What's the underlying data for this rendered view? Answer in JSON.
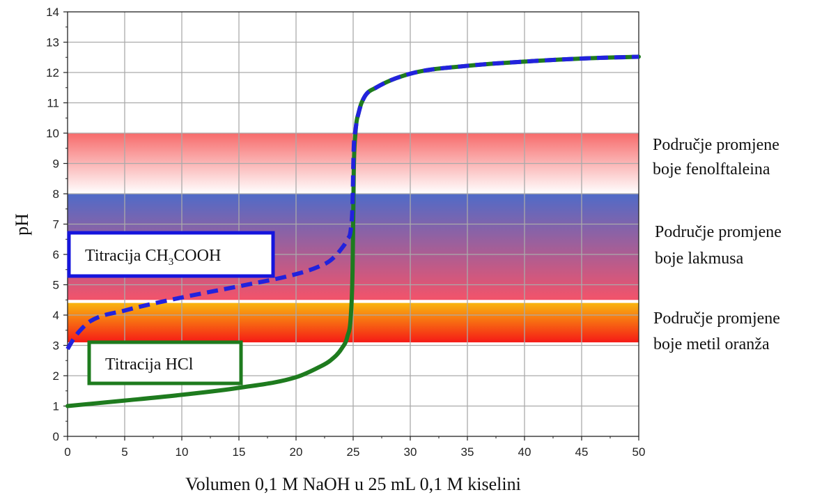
{
  "chart_data": {
    "type": "line",
    "xlabel": "Volumen 0,1 M NaOH u 25 mL 0,1 M kiselini",
    "ylabel": "pH",
    "xlim": [
      0,
      50
    ],
    "ylim": [
      0,
      14
    ],
    "x_ticks": [
      "0",
      "5",
      "10",
      "15",
      "20",
      "25",
      "30",
      "35",
      "40",
      "45",
      "50"
    ],
    "y_ticks": [
      "0",
      "1",
      "2",
      "3",
      "4",
      "5",
      "6",
      "7",
      "8",
      "9",
      "10",
      "11",
      "12",
      "13",
      "14"
    ],
    "grid": true,
    "series": [
      {
        "name": "Titracija HCl",
        "color": "#1e7b1e",
        "style": "solid",
        "x": [
          0,
          5,
          10,
          15,
          20,
          22,
          23,
          24,
          24.5,
          24.8,
          24.95,
          25,
          25.05,
          25.2,
          25.5,
          26,
          27,
          30,
          35,
          40,
          45,
          50
        ],
        "y": [
          1.0,
          1.18,
          1.37,
          1.6,
          1.95,
          2.28,
          2.5,
          2.9,
          3.3,
          4.0,
          5.5,
          7.0,
          8.7,
          10.0,
          10.7,
          11.2,
          11.5,
          11.96,
          12.22,
          12.36,
          12.46,
          12.52
        ]
      },
      {
        "name": "Titracija CH₃COOH",
        "color": "#2222dd",
        "style": "dashed",
        "x": [
          0,
          0.5,
          1,
          2,
          5,
          10,
          15,
          20,
          22,
          23,
          24,
          24.5,
          24.8,
          24.95,
          25,
          25.05,
          25.2,
          25.5,
          26,
          27,
          30,
          35,
          40,
          45,
          50
        ],
        "y": [
          2.88,
          3.2,
          3.45,
          3.8,
          4.15,
          4.58,
          4.95,
          5.35,
          5.6,
          5.8,
          6.2,
          6.5,
          6.85,
          7.7,
          8.72,
          9.5,
          10.1,
          10.7,
          11.2,
          11.5,
          11.96,
          12.22,
          12.36,
          12.46,
          12.52
        ]
      }
    ],
    "indicator_bands": [
      {
        "from": 8.0,
        "to": 10.0,
        "top_color": "#f76b6b",
        "bottom_color": "#ffffff",
        "label_lines": [
          "Područje promjene",
          "boje fenolftaleina"
        ]
      },
      {
        "from": 4.5,
        "to": 8.0,
        "top_color": "#4f6bc8",
        "bottom_color": "#f3536a",
        "label_lines": [
          "Područje promjene",
          "boje lakmusa"
        ]
      },
      {
        "from": 3.1,
        "to": 4.4,
        "top_color": "#f9b50f",
        "bottom_color": "#f51a16",
        "label_lines": [
          "Područje promjene",
          "boje metil oranža"
        ]
      }
    ],
    "annotations": [
      {
        "series": "Titracija CH₃COOH",
        "text_main": "Titracija CH",
        "text_sub": "3",
        "text_rest": "COOH",
        "border_color": "#1515dd"
      },
      {
        "series": "Titracija HCl",
        "text_main": "Titracija HCl",
        "text_sub": "",
        "text_rest": "",
        "border_color": "#1e7b1e"
      }
    ]
  }
}
